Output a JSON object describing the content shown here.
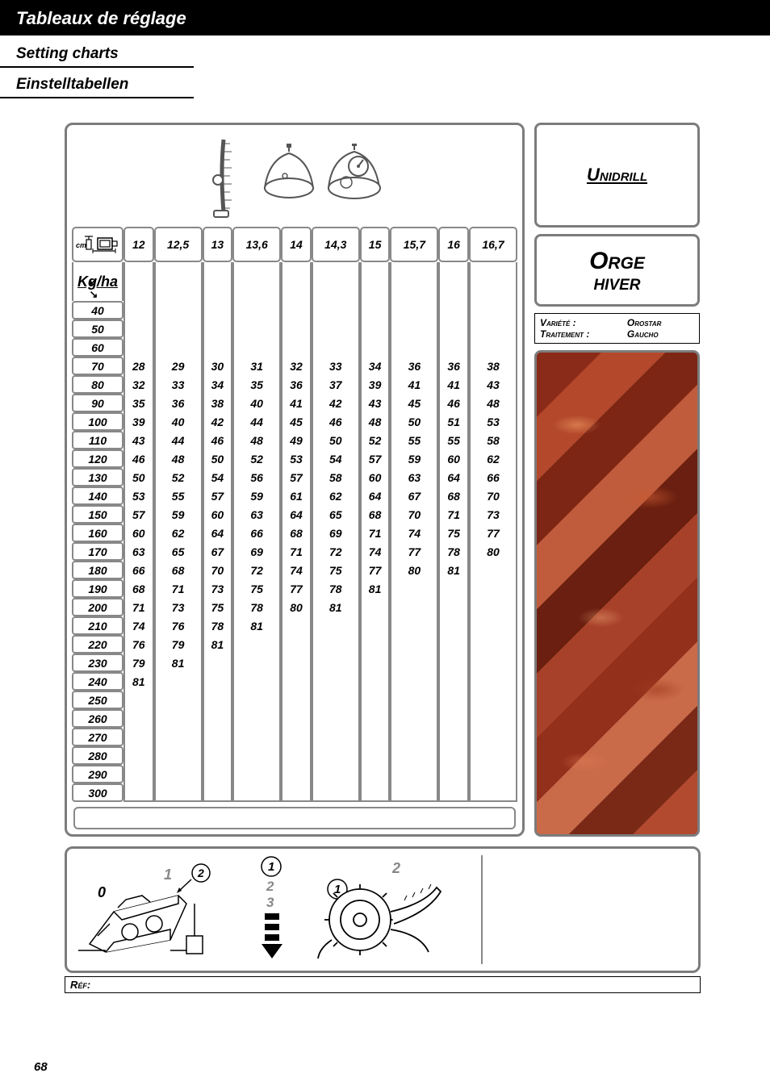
{
  "titles": {
    "fr": "Tableaux de réglage",
    "en": "Setting charts",
    "de": "Einstelltabellen"
  },
  "brand": "Unidrill",
  "crop": {
    "title": "Orge",
    "sub": "HIVER"
  },
  "variety": {
    "label1": "Variété :",
    "value1": "Orostar",
    "label2": "Traitement :",
    "value2": "Gaucho"
  },
  "kgha_label": "Kg/ha",
  "cm_label": "cm",
  "ref_label": "Réf:",
  "page_number": "68",
  "table": {
    "col_headers": [
      "12",
      "12,5",
      "13",
      "13,6",
      "14",
      "14,3",
      "15",
      "15,7",
      "16",
      "16,7"
    ],
    "row_headers": [
      "40",
      "50",
      "60",
      "70",
      "80",
      "90",
      "100",
      "110",
      "120",
      "130",
      "140",
      "150",
      "160",
      "170",
      "180",
      "190",
      "200",
      "210",
      "220",
      "230",
      "240",
      "250",
      "260",
      "270",
      "280",
      "290",
      "300"
    ],
    "rows": [
      [],
      [],
      [],
      [
        "28",
        "29",
        "30",
        "31",
        "32",
        "33",
        "34",
        "36",
        "36",
        "38"
      ],
      [
        "32",
        "33",
        "34",
        "35",
        "36",
        "37",
        "39",
        "41",
        "41",
        "43"
      ],
      [
        "35",
        "36",
        "38",
        "40",
        "41",
        "42",
        "43",
        "45",
        "46",
        "48"
      ],
      [
        "39",
        "40",
        "42",
        "44",
        "45",
        "46",
        "48",
        "50",
        "51",
        "53"
      ],
      [
        "43",
        "44",
        "46",
        "48",
        "49",
        "50",
        "52",
        "55",
        "55",
        "58"
      ],
      [
        "46",
        "48",
        "50",
        "52",
        "53",
        "54",
        "57",
        "59",
        "60",
        "62"
      ],
      [
        "50",
        "52",
        "54",
        "56",
        "57",
        "58",
        "60",
        "63",
        "64",
        "66"
      ],
      [
        "53",
        "55",
        "57",
        "59",
        "61",
        "62",
        "64",
        "67",
        "68",
        "70"
      ],
      [
        "57",
        "59",
        "60",
        "63",
        "64",
        "65",
        "68",
        "70",
        "71",
        "73"
      ],
      [
        "60",
        "62",
        "64",
        "66",
        "68",
        "69",
        "71",
        "74",
        "75",
        "77"
      ],
      [
        "63",
        "65",
        "67",
        "69",
        "71",
        "72",
        "74",
        "77",
        "78",
        "80"
      ],
      [
        "66",
        "68",
        "70",
        "72",
        "74",
        "75",
        "77",
        "80",
        "81",
        ""
      ],
      [
        "68",
        "71",
        "73",
        "75",
        "77",
        "78",
        "81",
        "",
        "",
        ""
      ],
      [
        "71",
        "73",
        "75",
        "78",
        "80",
        "81",
        "",
        "",
        "",
        ""
      ],
      [
        "74",
        "76",
        "78",
        "81",
        "",
        "",
        "",
        "",
        "",
        ""
      ],
      [
        "76",
        "79",
        "81",
        "",
        "",
        "",
        "",
        "",
        "",
        ""
      ],
      [
        "79",
        "81",
        "",
        "",
        "",
        "",
        "",
        "",
        "",
        ""
      ],
      [
        "81",
        "",
        "",
        "",
        "",
        "",
        "",
        "",
        "",
        ""
      ],
      [],
      [],
      [],
      [],
      [],
      [],
      []
    ]
  },
  "diagram_labels": {
    "zero": "0",
    "one": "1",
    "two": "2",
    "three": "3"
  },
  "colors": {
    "border": "#7c7c7c",
    "text": "#000000",
    "bg": "#ffffff"
  }
}
